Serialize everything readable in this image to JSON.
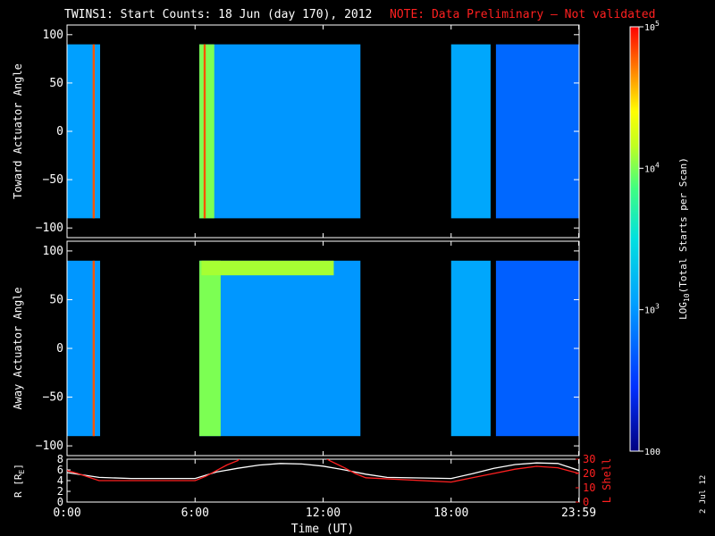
{
  "header": {
    "title": "TWINS1: Start Counts: 18 Jun (day 170), 2012",
    "note": "NOTE: Data Preliminary – Not validated"
  },
  "footer": {
    "date_stamp": "2 Jul 12"
  },
  "colors": {
    "background": "#000000",
    "note": "#ff2020",
    "lshell": "#ff2020",
    "radius": "#ffffff"
  },
  "chart_data": [
    {
      "type": "heatmap",
      "ylabel": "Toward Actuator Angle",
      "ylim": [
        -110,
        110
      ],
      "yticks": [
        -100,
        -50,
        0,
        50,
        100
      ],
      "xlim": [
        0,
        24
      ],
      "data_range_y": [
        -90,
        90
      ],
      "segments": [
        {
          "start": 0.0,
          "end": 1.55,
          "level": 3.05
        },
        {
          "start": 6.2,
          "end": 13.75,
          "level": 3.0
        },
        {
          "start": 18.0,
          "end": 19.85,
          "level": 3.1
        },
        {
          "start": 20.1,
          "end": 24.0,
          "level": 2.75
        }
      ],
      "hot_bands": [
        {
          "start": 1.2,
          "end": 1.3,
          "level": 4.8
        },
        {
          "start": 6.2,
          "end": 6.9,
          "level": 4.0
        },
        {
          "start": 6.4,
          "end": 6.5,
          "level": 4.8
        }
      ]
    },
    {
      "type": "heatmap",
      "ylabel": "Away Actuator Angle",
      "ylim": [
        -110,
        110
      ],
      "yticks": [
        -100,
        -50,
        0,
        50,
        100
      ],
      "xlim": [
        0,
        24
      ],
      "data_range_y": [
        -90,
        90
      ],
      "segments": [
        {
          "start": 0.0,
          "end": 1.55,
          "level": 3.0
        },
        {
          "start": 6.2,
          "end": 13.75,
          "level": 3.0
        },
        {
          "start": 18.0,
          "end": 19.85,
          "level": 3.1
        },
        {
          "start": 20.1,
          "end": 24.0,
          "level": 2.7
        }
      ],
      "hot_bands": [
        {
          "start": 1.2,
          "end": 1.3,
          "level": 4.8
        },
        {
          "start": 6.2,
          "end": 7.2,
          "level": 4.0
        },
        {
          "start": 6.3,
          "end": 12.5,
          "level": 4.1,
          "ymin": 75,
          "ymax": 90
        }
      ]
    },
    {
      "type": "line",
      "ylabel": "R [R",
      "ylabel_sub": "E",
      "ylabel_close": "]",
      "ylim": [
        0,
        8
      ],
      "yticks": [
        0,
        2,
        4,
        6,
        8
      ],
      "y2label": "L Shell",
      "y2lim": [
        0,
        30
      ],
      "y2ticks": [
        0,
        10,
        20,
        30
      ],
      "xlabel": "Time (UT)",
      "xlim": [
        0,
        24
      ],
      "xtick_labels": [
        "0:00",
        "6:00",
        "12:00",
        "18:00",
        "23:59"
      ],
      "xtick_values": [
        0,
        6,
        12,
        18,
        23.98
      ],
      "series": [
        {
          "name": "R",
          "axis": "left",
          "x": [
            0,
            1.5,
            3,
            6,
            7,
            8,
            9,
            10,
            11,
            12,
            13,
            14,
            15,
            18,
            19,
            20,
            21,
            22,
            23,
            24
          ],
          "y": [
            5.5,
            4.6,
            4.4,
            4.4,
            5.6,
            6.3,
            6.9,
            7.2,
            7.1,
            6.7,
            6.0,
            5.2,
            4.6,
            4.4,
            5.3,
            6.3,
            7.0,
            7.3,
            7.2,
            5.9
          ]
        },
        {
          "name": "L Shell",
          "axis": "right",
          "x": [
            0,
            0.5,
            1.5,
            6.0,
            6.5,
            7.0,
            7.5,
            8.0,
            8.2,
            12.0,
            12.3,
            13.0,
            13.5,
            14.0,
            18.0,
            19.0,
            20.0,
            21.0,
            22.0,
            23.0,
            24.0
          ],
          "y": [
            22,
            20,
            15,
            15,
            18,
            22,
            26,
            29,
            32,
            32,
            29,
            24,
            20,
            17,
            14,
            17,
            20,
            23,
            25,
            24,
            20
          ]
        }
      ]
    }
  ],
  "colorbar": {
    "label": "LOG",
    "label_sub": "10",
    "label_rest": "(Total Starts per Scan)",
    "range": [
      2,
      5
    ],
    "ticks": [
      {
        "value": 5,
        "base": "10",
        "exp": "5"
      },
      {
        "value": 4,
        "base": "10",
        "exp": "4"
      },
      {
        "value": 3,
        "base": "10",
        "exp": "3"
      },
      {
        "value": 2,
        "base": "100",
        "exp": ""
      }
    ]
  }
}
